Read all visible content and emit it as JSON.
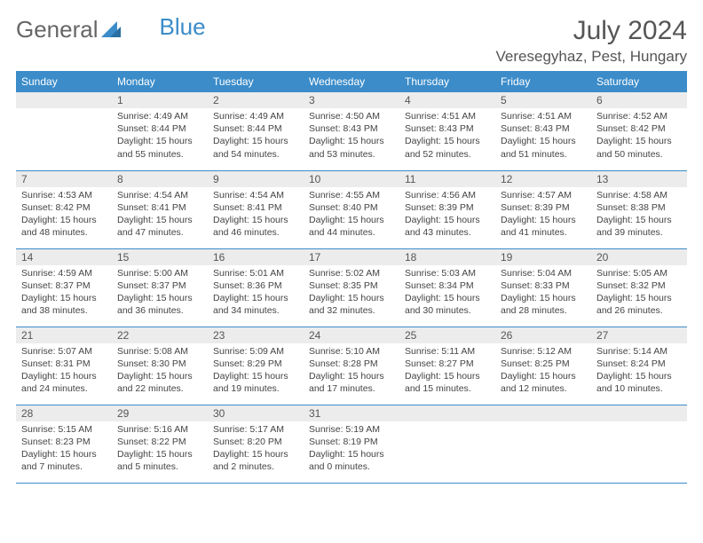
{
  "brand": {
    "text1": "General",
    "text2": "Blue"
  },
  "title": "July 2024",
  "location": "Veresegyhaz, Pest, Hungary",
  "colors": {
    "header_bg": "#3b8cc9",
    "header_fg": "#ffffff",
    "daynum_bg": "#ececec",
    "border": "#3b8cc9",
    "text": "#444444",
    "title": "#555555"
  },
  "day_headers": [
    "Sunday",
    "Monday",
    "Tuesday",
    "Wednesday",
    "Thursday",
    "Friday",
    "Saturday"
  ],
  "leading_blanks": 1,
  "days": [
    {
      "n": 1,
      "sunrise": "4:49 AM",
      "sunset": "8:44 PM",
      "dl_h": 15,
      "dl_m": 55
    },
    {
      "n": 2,
      "sunrise": "4:49 AM",
      "sunset": "8:44 PM",
      "dl_h": 15,
      "dl_m": 54
    },
    {
      "n": 3,
      "sunrise": "4:50 AM",
      "sunset": "8:43 PM",
      "dl_h": 15,
      "dl_m": 53
    },
    {
      "n": 4,
      "sunrise": "4:51 AM",
      "sunset": "8:43 PM",
      "dl_h": 15,
      "dl_m": 52
    },
    {
      "n": 5,
      "sunrise": "4:51 AM",
      "sunset": "8:43 PM",
      "dl_h": 15,
      "dl_m": 51
    },
    {
      "n": 6,
      "sunrise": "4:52 AM",
      "sunset": "8:42 PM",
      "dl_h": 15,
      "dl_m": 50
    },
    {
      "n": 7,
      "sunrise": "4:53 AM",
      "sunset": "8:42 PM",
      "dl_h": 15,
      "dl_m": 48
    },
    {
      "n": 8,
      "sunrise": "4:54 AM",
      "sunset": "8:41 PM",
      "dl_h": 15,
      "dl_m": 47
    },
    {
      "n": 9,
      "sunrise": "4:54 AM",
      "sunset": "8:41 PM",
      "dl_h": 15,
      "dl_m": 46
    },
    {
      "n": 10,
      "sunrise": "4:55 AM",
      "sunset": "8:40 PM",
      "dl_h": 15,
      "dl_m": 44
    },
    {
      "n": 11,
      "sunrise": "4:56 AM",
      "sunset": "8:39 PM",
      "dl_h": 15,
      "dl_m": 43
    },
    {
      "n": 12,
      "sunrise": "4:57 AM",
      "sunset": "8:39 PM",
      "dl_h": 15,
      "dl_m": 41
    },
    {
      "n": 13,
      "sunrise": "4:58 AM",
      "sunset": "8:38 PM",
      "dl_h": 15,
      "dl_m": 39
    },
    {
      "n": 14,
      "sunrise": "4:59 AM",
      "sunset": "8:37 PM",
      "dl_h": 15,
      "dl_m": 38
    },
    {
      "n": 15,
      "sunrise": "5:00 AM",
      "sunset": "8:37 PM",
      "dl_h": 15,
      "dl_m": 36
    },
    {
      "n": 16,
      "sunrise": "5:01 AM",
      "sunset": "8:36 PM",
      "dl_h": 15,
      "dl_m": 34
    },
    {
      "n": 17,
      "sunrise": "5:02 AM",
      "sunset": "8:35 PM",
      "dl_h": 15,
      "dl_m": 32
    },
    {
      "n": 18,
      "sunrise": "5:03 AM",
      "sunset": "8:34 PM",
      "dl_h": 15,
      "dl_m": 30
    },
    {
      "n": 19,
      "sunrise": "5:04 AM",
      "sunset": "8:33 PM",
      "dl_h": 15,
      "dl_m": 28
    },
    {
      "n": 20,
      "sunrise": "5:05 AM",
      "sunset": "8:32 PM",
      "dl_h": 15,
      "dl_m": 26
    },
    {
      "n": 21,
      "sunrise": "5:07 AM",
      "sunset": "8:31 PM",
      "dl_h": 15,
      "dl_m": 24
    },
    {
      "n": 22,
      "sunrise": "5:08 AM",
      "sunset": "8:30 PM",
      "dl_h": 15,
      "dl_m": 22
    },
    {
      "n": 23,
      "sunrise": "5:09 AM",
      "sunset": "8:29 PM",
      "dl_h": 15,
      "dl_m": 19
    },
    {
      "n": 24,
      "sunrise": "5:10 AM",
      "sunset": "8:28 PM",
      "dl_h": 15,
      "dl_m": 17
    },
    {
      "n": 25,
      "sunrise": "5:11 AM",
      "sunset": "8:27 PM",
      "dl_h": 15,
      "dl_m": 15
    },
    {
      "n": 26,
      "sunrise": "5:12 AM",
      "sunset": "8:25 PM",
      "dl_h": 15,
      "dl_m": 12
    },
    {
      "n": 27,
      "sunrise": "5:14 AM",
      "sunset": "8:24 PM",
      "dl_h": 15,
      "dl_m": 10
    },
    {
      "n": 28,
      "sunrise": "5:15 AM",
      "sunset": "8:23 PM",
      "dl_h": 15,
      "dl_m": 7
    },
    {
      "n": 29,
      "sunrise": "5:16 AM",
      "sunset": "8:22 PM",
      "dl_h": 15,
      "dl_m": 5
    },
    {
      "n": 30,
      "sunrise": "5:17 AM",
      "sunset": "8:20 PM",
      "dl_h": 15,
      "dl_m": 2
    },
    {
      "n": 31,
      "sunrise": "5:19 AM",
      "sunset": "8:19 PM",
      "dl_h": 15,
      "dl_m": 0
    }
  ],
  "labels": {
    "sunrise": "Sunrise:",
    "sunset": "Sunset:",
    "daylight": "Daylight:",
    "hours": "hours",
    "and": "and",
    "minutes": "minutes."
  }
}
